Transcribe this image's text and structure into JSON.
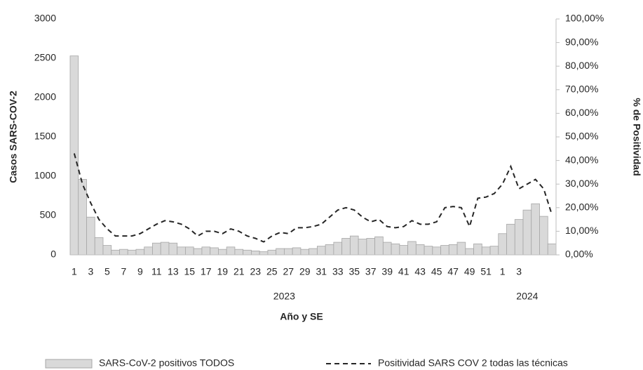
{
  "chart_data": {
    "type": "bar-line",
    "x_title": "Año y SE",
    "y_title": "Casos SARS-COV-2",
    "y2_title": "% de Positividad",
    "categories": [
      "1",
      null,
      "3",
      null,
      "5",
      null,
      "7",
      null,
      "9",
      null,
      "11",
      null,
      "13",
      null,
      "15",
      null,
      "17",
      null,
      "19",
      null,
      "21",
      null,
      "23",
      null,
      "25",
      null,
      "27",
      null,
      "29",
      null,
      "31",
      null,
      "33",
      null,
      "35",
      null,
      "37",
      null,
      "39",
      null,
      "41",
      null,
      "43",
      null,
      "45",
      null,
      "47",
      null,
      "49",
      null,
      "51",
      null,
      "1",
      null,
      "3",
      null,
      null,
      null,
      null
    ],
    "groups": [
      {
        "label": "2023",
        "count": 52
      },
      {
        "label": "2024",
        "count": 7
      }
    ],
    "series": [
      {
        "name": "SARS-CoV-2 positivos TODOS",
        "type": "bar",
        "color": "#d9d9d9",
        "axis": "y",
        "values": [
          2530,
          960,
          480,
          220,
          120,
          60,
          70,
          60,
          70,
          100,
          150,
          160,
          150,
          100,
          100,
          80,
          100,
          90,
          70,
          100,
          70,
          60,
          50,
          40,
          60,
          80,
          80,
          90,
          70,
          80,
          110,
          130,
          160,
          210,
          240,
          200,
          210,
          230,
          160,
          140,
          120,
          170,
          130,
          110,
          100,
          120,
          130,
          160,
          80,
          140,
          100,
          110,
          270,
          390,
          450,
          570,
          650,
          490,
          140
        ]
      },
      {
        "name": "Positividad SARS COV 2 todas las técnicas",
        "type": "line",
        "color": "#262626",
        "axis": "y2",
        "values": [
          43,
          30,
          22,
          15,
          11,
          8,
          8,
          8,
          9,
          11,
          13,
          14.5,
          14,
          13,
          11,
          8,
          10,
          10,
          9,
          11,
          10,
          8,
          7,
          5.5,
          8,
          9.5,
          9,
          11.5,
          11.5,
          12,
          13,
          16,
          19,
          20,
          19,
          16,
          14,
          15,
          12,
          11.5,
          12,
          14.5,
          13,
          13,
          14,
          20,
          20.5,
          20,
          12,
          24,
          24.5,
          26,
          30,
          37.5,
          28,
          30,
          32,
          28,
          17
        ]
      }
    ],
    "ylim": [
      0,
      3000
    ],
    "yticks": [
      0,
      500,
      1000,
      1500,
      2000,
      2500,
      3000
    ],
    "y2lim": [
      0,
      100
    ],
    "y2ticks": [
      {
        "value": 0,
        "label": "0,00%"
      },
      {
        "value": 10,
        "label": "10,00%"
      },
      {
        "value": 20,
        "label": "20,00%"
      },
      {
        "value": 30,
        "label": "30,00%"
      },
      {
        "value": 40,
        "label": "40,00%"
      },
      {
        "value": 50,
        "label": "50,00%"
      },
      {
        "value": 60,
        "label": "60,00%"
      },
      {
        "value": 70,
        "label": "70,00%"
      },
      {
        "value": 80,
        "label": "80,00%"
      },
      {
        "value": 90,
        "label": "90,00%"
      },
      {
        "value": 100,
        "label": "100,00%"
      }
    ],
    "legend": "bottom"
  }
}
